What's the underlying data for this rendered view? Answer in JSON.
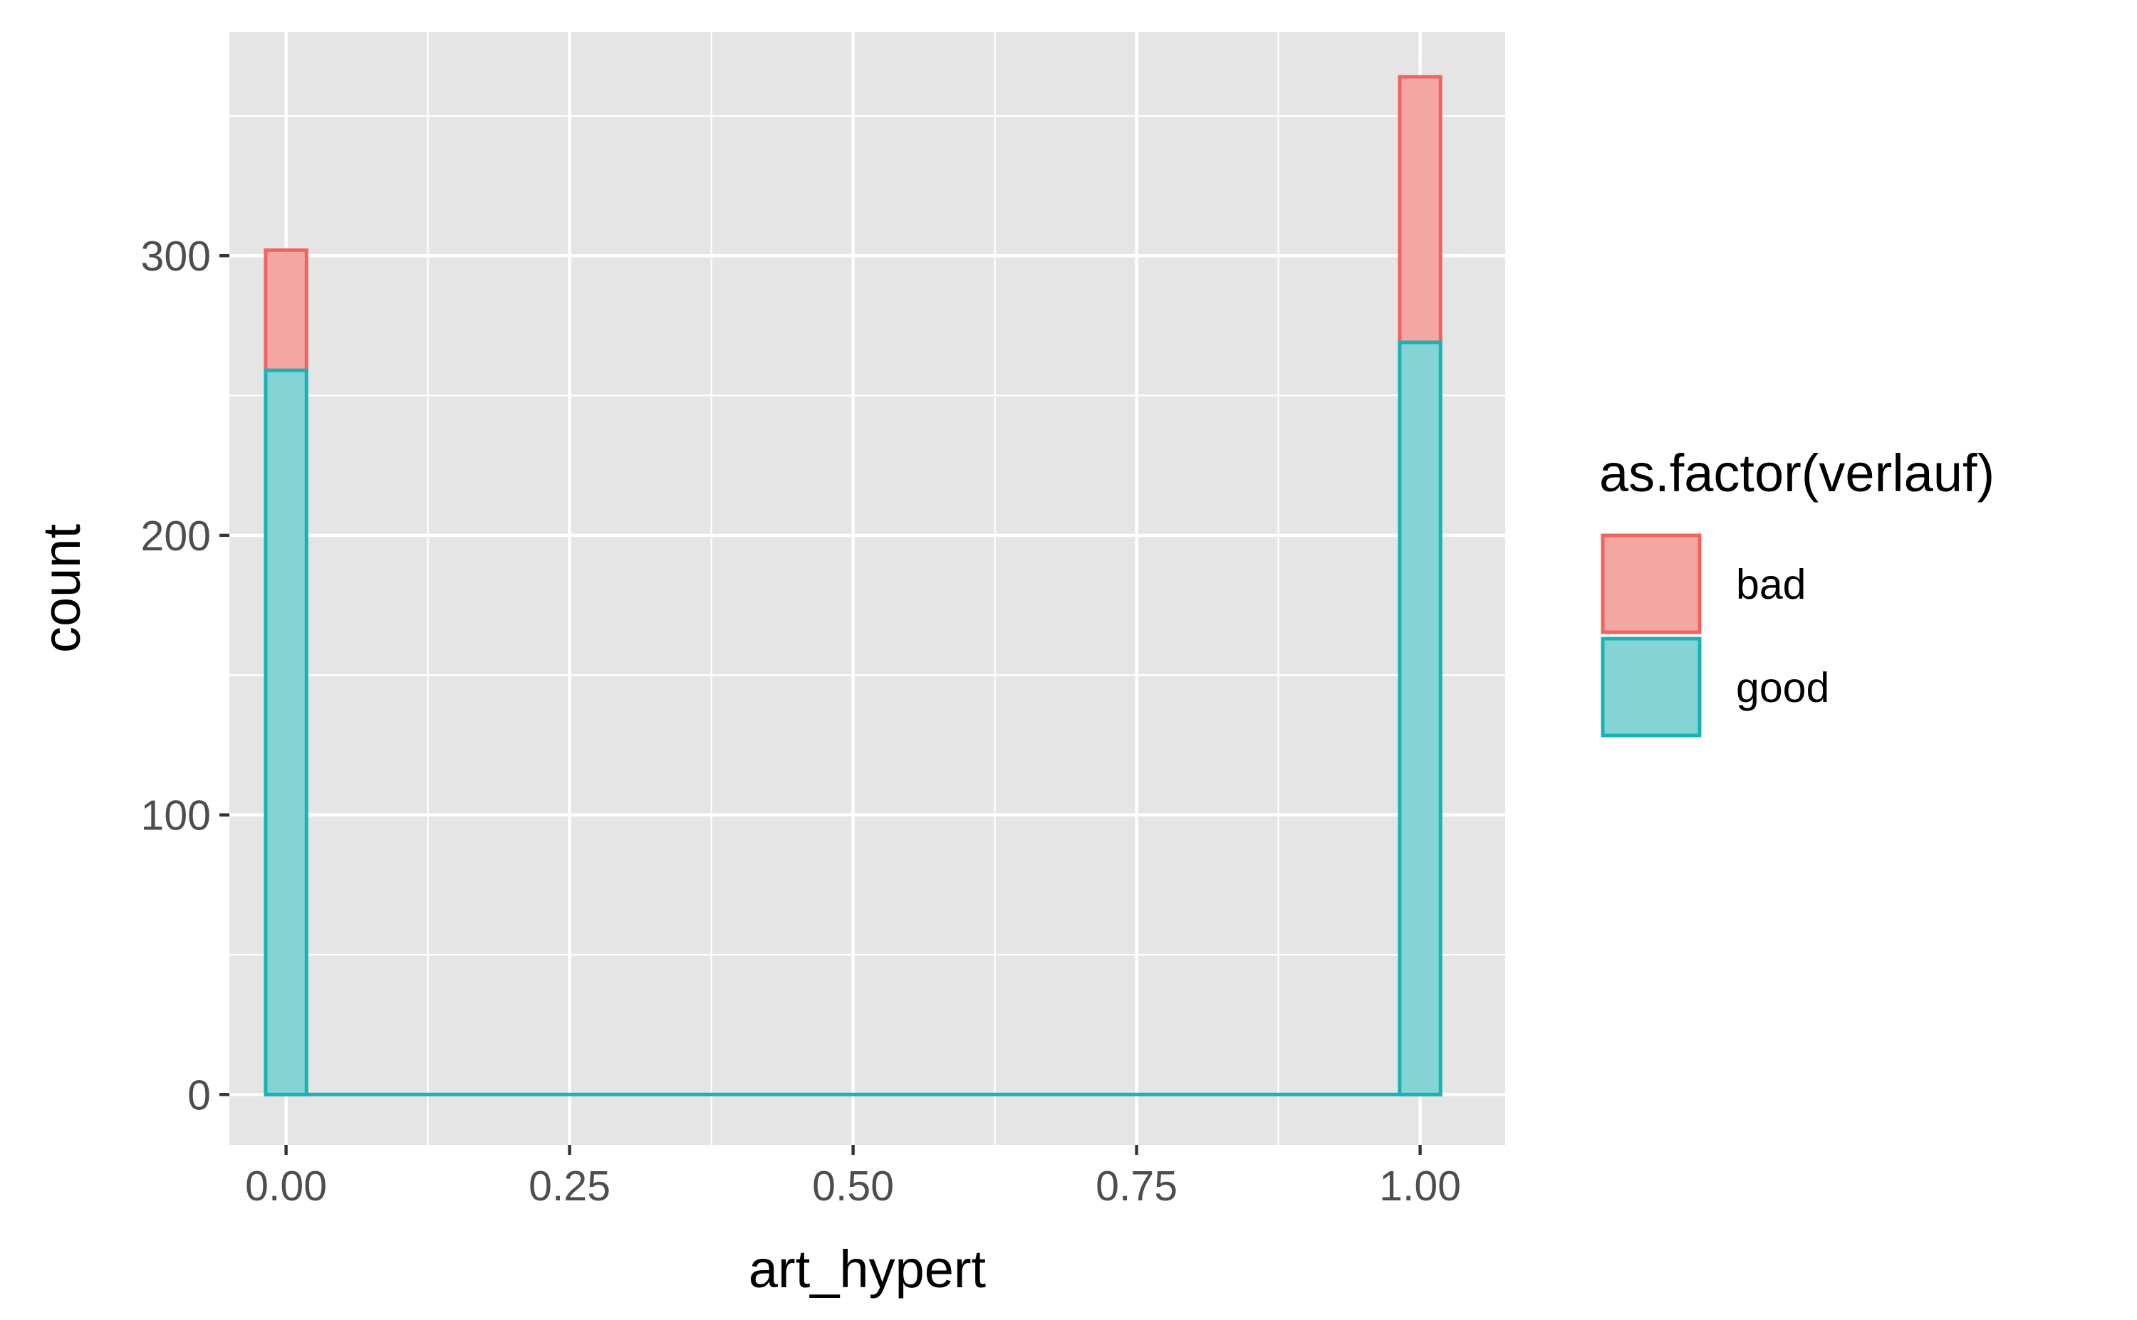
{
  "chart_data": {
    "type": "bar",
    "subtype": "stacked-histogram",
    "x_axis": {
      "label": "art_hypert",
      "lim": [
        -0.05,
        1.075
      ],
      "ticks": [
        0.0,
        0.25,
        0.5,
        0.75,
        1.0
      ],
      "tick_labels": [
        "0.00",
        "0.25",
        "0.50",
        "0.75",
        "1.00"
      ],
      "minor_ticks": [
        0.125,
        0.375,
        0.625,
        0.875
      ]
    },
    "y_axis": {
      "label": "count",
      "lim": [
        -18,
        380
      ],
      "ticks": [
        0,
        100,
        200,
        300
      ],
      "tick_labels": [
        "0",
        "100",
        "200",
        "300"
      ],
      "minor_ticks": [
        50,
        150,
        250,
        350
      ]
    },
    "bins": [
      {
        "x": 0.0,
        "width": 0.036
      },
      {
        "x": 1.0,
        "width": 0.036
      }
    ],
    "series": [
      {
        "name": "good",
        "values": [
          259,
          269
        ]
      },
      {
        "name": "bad",
        "values": [
          43,
          95
        ]
      }
    ],
    "legend": {
      "title": "as.factor(verlauf)",
      "position": "right",
      "entries": [
        "bad",
        "good"
      ]
    },
    "colors": {
      "bad_fill": "#f3a6a2",
      "bad_stroke": "#f0645e",
      "good_fill": "#85d4d5",
      "good_stroke": "#1bb2b6",
      "panel_background": "#e5e5e5",
      "grid": "#ffffff",
      "tick_text": "#4d4d4d"
    },
    "grid": true
  }
}
